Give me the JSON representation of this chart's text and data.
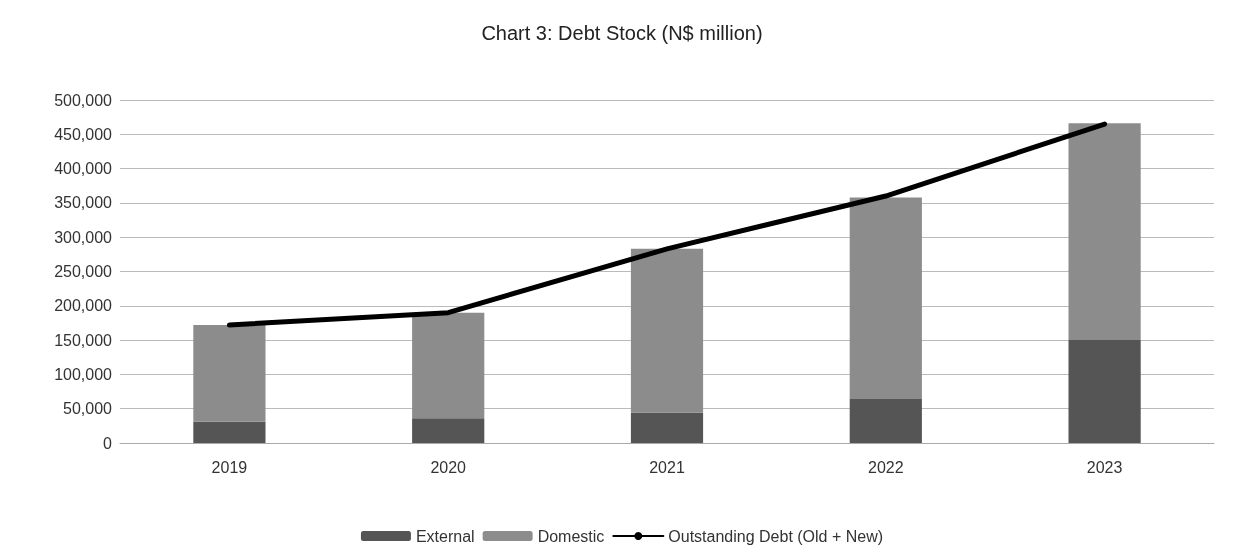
{
  "chart_data": {
    "type": "bar",
    "title": "Chart 3: Debt Stock (N$ million)",
    "categories": [
      "2019",
      "2020",
      "2021",
      "2022",
      "2023"
    ],
    "stacked": true,
    "series": [
      {
        "name": "External",
        "color": "#555555",
        "values": [
          31000,
          36000,
          44000,
          64000,
          150000
        ]
      },
      {
        "name": "Domestic",
        "color": "#8c8c8c",
        "values": [
          141000,
          154000,
          239000,
          294000,
          316000
        ]
      },
      {
        "name": "Outstanding Debt (Old + New)",
        "type": "line",
        "color": "#000000",
        "values": [
          172000,
          190000,
          283000,
          360000,
          465000
        ]
      }
    ],
    "ylim": [
      0,
      500000
    ],
    "yticks": [
      0,
      {
        "value": 50000,
        "label": "50,000"
      },
      {
        "value": 100000,
        "label": "100,000"
      },
      {
        "value": 150000,
        "label": "150,000"
      },
      {
        "value": 200000,
        "label": "200,000"
      },
      {
        "value": 250000,
        "label": "250,000"
      },
      {
        "value": 300000,
        "label": "300,000"
      },
      {
        "value": 350000,
        "label": "350,000"
      },
      {
        "value": 400000,
        "label": "400,000"
      },
      {
        "value": 450000,
        "label": "450,000"
      },
      {
        "value": 500000,
        "label": "500,000"
      }
    ],
    "grid": "y",
    "legend": "bottom",
    "marker": "none"
  }
}
